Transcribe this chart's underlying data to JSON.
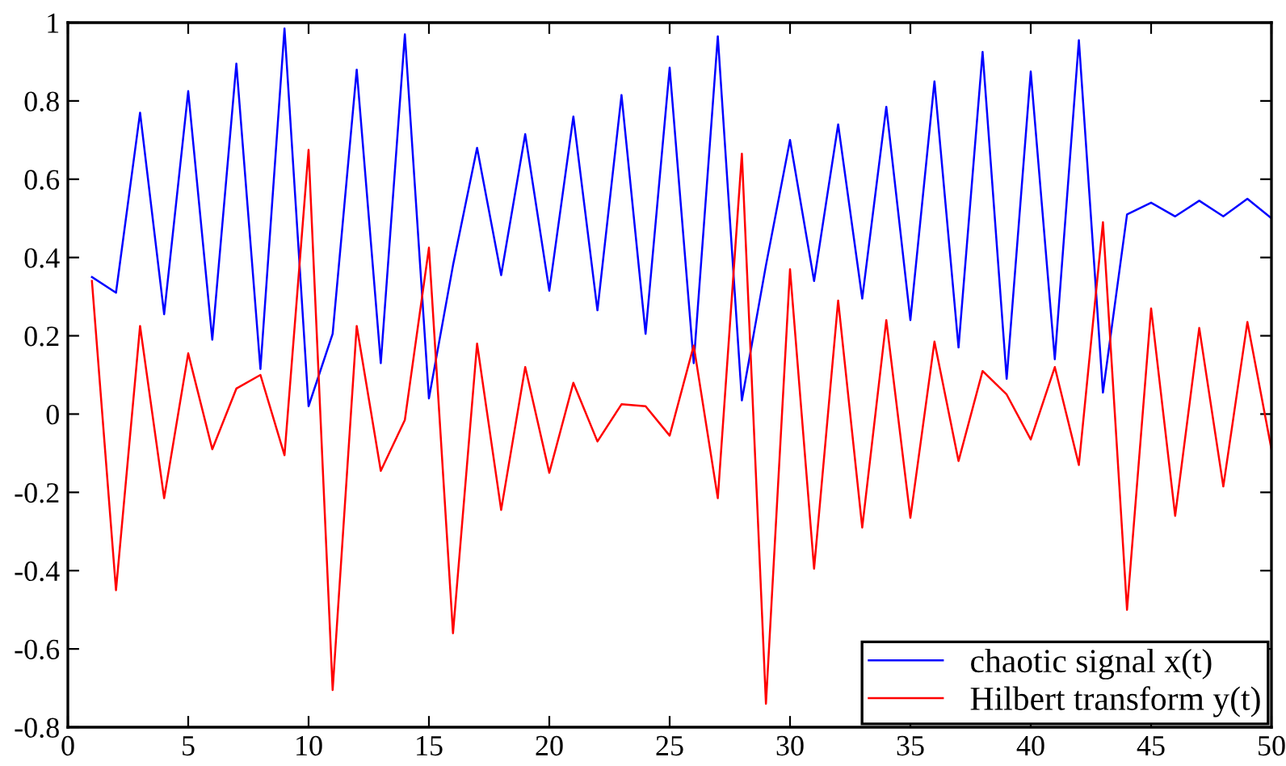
{
  "chart_data": {
    "type": "line",
    "x": [
      1,
      2,
      3,
      4,
      5,
      6,
      7,
      8,
      9,
      10,
      11,
      12,
      13,
      14,
      15,
      16,
      17,
      18,
      19,
      20,
      21,
      22,
      23,
      24,
      25,
      26,
      27,
      28,
      29,
      30,
      31,
      32,
      33,
      34,
      35,
      36,
      37,
      38,
      39,
      40,
      41,
      42,
      43,
      44,
      45,
      46,
      47,
      48,
      49,
      50
    ],
    "series": [
      {
        "name": "chaotic signal x(t)",
        "color": "#0000ff",
        "values": [
          0.35,
          0.31,
          0.77,
          0.255,
          0.825,
          0.19,
          0.895,
          0.115,
          0.985,
          0.02,
          0.205,
          0.88,
          0.13,
          0.97,
          0.04,
          0.38,
          0.68,
          0.355,
          0.715,
          0.315,
          0.76,
          0.265,
          0.815,
          0.205,
          0.885,
          0.13,
          0.965,
          0.035,
          0.38,
          0.7,
          0.34,
          0.74,
          0.295,
          0.785,
          0.24,
          0.85,
          0.17,
          0.925,
          0.09,
          0.875,
          0.14,
          0.955,
          0.055,
          0.51,
          0.54,
          0.505,
          0.545,
          0.505,
          0.55,
          0.5
        ]
      },
      {
        "name": "Hilbert transform y(t)",
        "color": "#ff0000",
        "values": [
          0.34,
          -0.45,
          0.225,
          -0.215,
          0.155,
          -0.09,
          0.065,
          0.1,
          -0.105,
          0.675,
          -0.705,
          0.225,
          -0.145,
          -0.015,
          0.425,
          -0.56,
          0.18,
          -0.245,
          0.12,
          -0.15,
          0.08,
          -0.07,
          0.025,
          0.02,
          -0.055,
          0.175,
          -0.215,
          0.665,
          -0.74,
          0.37,
          -0.395,
          0.29,
          -0.29,
          0.24,
          -0.265,
          0.185,
          -0.12,
          0.11,
          0.05,
          -0.065,
          0.12,
          -0.13,
          0.49,
          -0.5,
          0.27,
          -0.26,
          0.22,
          -0.185,
          0.235,
          -0.09
        ]
      }
    ],
    "xlim": [
      0,
      50
    ],
    "xticks": [
      0,
      5,
      10,
      15,
      20,
      25,
      30,
      35,
      40,
      45,
      50
    ],
    "ylim": [
      -0.8,
      1
    ],
    "yticks": [
      -0.8,
      -0.6,
      -0.4,
      -0.2,
      0,
      0.2,
      0.4,
      0.6,
      0.8,
      1
    ],
    "grid": false,
    "legend": "bottom right",
    "line_style": "solid",
    "marker": "none"
  }
}
